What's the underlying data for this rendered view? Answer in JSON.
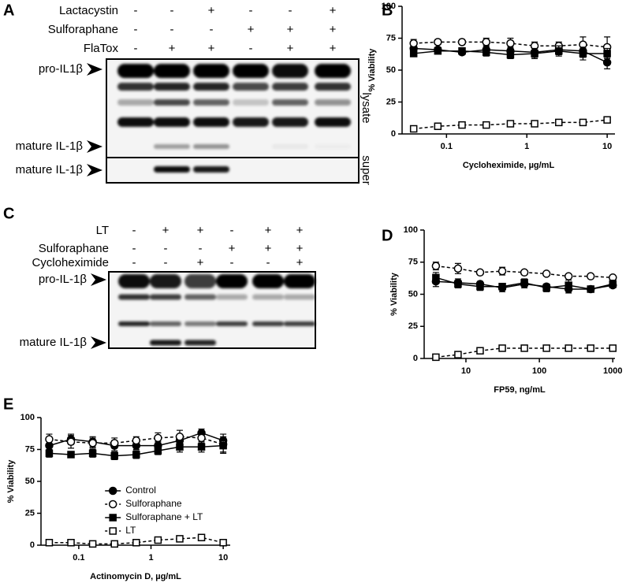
{
  "blots": [
    {
      "letter": "A",
      "conditions": [
        {
          "name": "Lactacystin",
          "signs": [
            "-",
            "-",
            "+",
            "-",
            "-",
            "+"
          ]
        },
        {
          "name": "Sulforaphane",
          "signs": [
            "-",
            "-",
            "-",
            "+",
            "+",
            "+"
          ]
        },
        {
          "name": "FlaTox",
          "signs": [
            "-",
            "+",
            "+",
            "-",
            "+",
            "+"
          ]
        }
      ],
      "left_labels": [
        "pro-IL1β",
        "mature IL-1β",
        "mature IL-1β"
      ],
      "right_labels": [
        "lysate",
        "super"
      ]
    },
    {
      "letter": "C",
      "conditions": [
        {
          "name": "LT",
          "signs": [
            "-",
            "+",
            "+",
            "-",
            "+",
            "+"
          ]
        },
        {
          "name": "Sulforaphane",
          "signs": [
            "-",
            "-",
            "-",
            "+",
            "+",
            "+"
          ]
        },
        {
          "name": "Cycloheximide",
          "signs": [
            "-",
            "-",
            "+",
            "-",
            "-",
            "+"
          ]
        }
      ],
      "left_labels": [
        "pro-IL-1β",
        "mature IL-1β"
      ],
      "right_labels": []
    }
  ],
  "chart_data": [
    {
      "type": "line",
      "panel_label": "B",
      "xlabel": "Cycloheximide, µg/mL",
      "ylabel": "% Viability",
      "x_scale": "log",
      "xlim": [
        0.028,
        12.5
      ],
      "xticks": [
        0.1,
        1,
        10
      ],
      "ylim": [
        0,
        100
      ],
      "yticks": [
        0,
        25,
        50,
        75,
        100
      ],
      "x": [
        0.039,
        0.078,
        0.156,
        0.3125,
        0.625,
        1.25,
        2.5,
        5,
        10
      ],
      "series": [
        {
          "color": "#000000",
          "marker": "circle",
          "filled": true,
          "dash": false,
          "values": [
            67,
            66,
            64,
            66,
            65,
            64,
            66,
            65,
            56
          ],
          "errors": [
            2,
            2,
            2,
            3,
            3,
            4,
            4,
            5,
            5
          ]
        },
        {
          "color": "#000000",
          "marker": "circle",
          "filled": false,
          "dash": true,
          "values": [
            71,
            72,
            72,
            72,
            71,
            69,
            69,
            70,
            68
          ],
          "errors": [
            3,
            2,
            2,
            3,
            4,
            3,
            3,
            6,
            8
          ]
        },
        {
          "color": "#000000",
          "marker": "square",
          "filled": true,
          "dash": false,
          "values": [
            63,
            65,
            65,
            64,
            62,
            63,
            65,
            63,
            63
          ],
          "errors": [
            2,
            2,
            2,
            3,
            3,
            4,
            4,
            5,
            4
          ]
        },
        {
          "color": "#000000",
          "marker": "square",
          "filled": false,
          "dash": true,
          "values": [
            4,
            6,
            7,
            7,
            8,
            8,
            9,
            9,
            11
          ],
          "errors": [
            1,
            1,
            1,
            1,
            1,
            1,
            1,
            1,
            1
          ]
        }
      ]
    },
    {
      "type": "line",
      "panel_label": "D",
      "xlabel": "FP59, ng/mL",
      "ylabel": "% Viability",
      "x_scale": "log",
      "xlim": [
        2.7,
        1070
      ],
      "xticks": [
        10,
        100,
        1000
      ],
      "ylim": [
        0,
        100
      ],
      "yticks": [
        0,
        25,
        50,
        75,
        100
      ],
      "x": [
        3.9,
        7.8,
        15.6,
        31.25,
        62.5,
        125,
        250,
        500,
        1000
      ],
      "series": [
        {
          "color": "#000000",
          "marker": "circle",
          "filled": true,
          "dash": false,
          "values": [
            60,
            59,
            58,
            55,
            58,
            56,
            54,
            54,
            57
          ],
          "errors": [
            4,
            3,
            2,
            3,
            3,
            2,
            3,
            1,
            2
          ]
        },
        {
          "color": "#000000",
          "marker": "circle",
          "filled": false,
          "dash": true,
          "values": [
            72,
            70,
            67,
            68,
            67,
            66,
            64,
            64,
            63
          ],
          "errors": [
            3,
            4,
            1,
            3,
            1,
            1,
            1,
            1,
            1
          ]
        },
        {
          "color": "#000000",
          "marker": "square",
          "filled": true,
          "dash": false,
          "values": [
            63,
            58,
            56,
            56,
            59,
            55,
            57,
            54,
            58
          ],
          "errors": [
            4,
            3,
            3,
            2,
            3,
            3,
            4,
            1,
            3
          ]
        },
        {
          "color": "#000000",
          "marker": "square",
          "filled": false,
          "dash": true,
          "values": [
            1,
            3,
            6,
            8,
            8,
            8,
            8,
            8,
            8
          ],
          "errors": [
            1,
            1,
            1,
            1,
            1,
            1,
            1,
            1,
            1
          ]
        }
      ]
    },
    {
      "type": "line",
      "panel_label": "E",
      "xlabel": "Actinomycin D, µg/mL",
      "ylabel": "% Viability",
      "x_scale": "log",
      "xlim": [
        0.03,
        12.5
      ],
      "xticks": [
        0.1,
        1,
        10
      ],
      "ylim": [
        0,
        100
      ],
      "yticks": [
        0,
        25,
        50,
        75,
        100
      ],
      "legend": "center",
      "x": [
        0.039,
        0.078,
        0.156,
        0.3125,
        0.625,
        1.25,
        2.5,
        5,
        10
      ],
      "series": [
        {
          "name": "Control",
          "color": "#000000",
          "marker": "circle",
          "filled": true,
          "dash": false,
          "values": [
            78,
            83,
            81,
            78,
            78,
            78,
            82,
            88,
            82
          ],
          "errors": [
            4,
            4,
            4,
            4,
            3,
            3,
            4,
            3,
            5
          ]
        },
        {
          "name": "Sulforaphane",
          "color": "#000000",
          "marker": "circle",
          "filled": false,
          "dash": true,
          "values": [
            83,
            81,
            80,
            80,
            82,
            84,
            85,
            84,
            79
          ],
          "errors": [
            4,
            5,
            4,
            4,
            3,
            4,
            5,
            4,
            6
          ]
        },
        {
          "name": "Sulforaphane + LT",
          "color": "#000000",
          "marker": "square",
          "filled": true,
          "dash": false,
          "values": [
            72,
            71,
            72,
            70,
            71,
            74,
            77,
            77,
            78
          ],
          "errors": [
            3,
            2,
            3,
            3,
            3,
            3,
            4,
            4,
            6
          ]
        },
        {
          "name": "LT",
          "color": "#000000",
          "marker": "square",
          "filled": false,
          "dash": true,
          "values": [
            2,
            2,
            1,
            1,
            2,
            4,
            5,
            6,
            2
          ],
          "errors": [
            1,
            1,
            1,
            1,
            1,
            1,
            1,
            1,
            1
          ]
        }
      ]
    }
  ]
}
